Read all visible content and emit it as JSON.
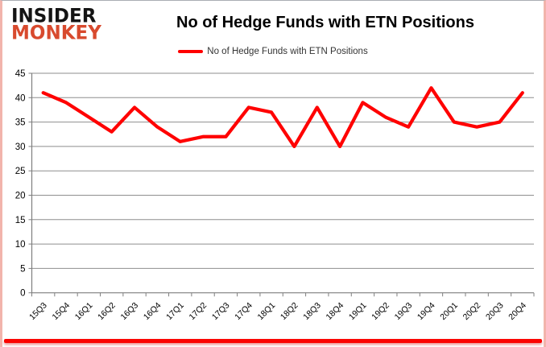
{
  "logo": {
    "line1": "INSIDER",
    "line2": "MONKEY"
  },
  "header": {
    "title": "No of Hedge Funds with ETN Positions"
  },
  "legend": {
    "label": "No of Hedge Funds with ETN Positions",
    "swatch_color": "#ff0000"
  },
  "chart_data": {
    "type": "line",
    "title": "No of Hedge Funds with ETN Positions",
    "categories": [
      "15Q3",
      "15Q4",
      "16Q1",
      "16Q2",
      "16Q3",
      "16Q4",
      "17Q1",
      "17Q2",
      "17Q3",
      "17Q4",
      "18Q1",
      "18Q2",
      "18Q3",
      "18Q4",
      "19Q1",
      "19Q2",
      "19Q3",
      "19Q4",
      "20Q1",
      "20Q2",
      "20Q3",
      "20Q4"
    ],
    "series": [
      {
        "name": "No of Hedge Funds with ETN Positions",
        "color": "#ff0000",
        "values": [
          41,
          39,
          36,
          33,
          38,
          34,
          31,
          32,
          32,
          38,
          37,
          30,
          38,
          30,
          39,
          36,
          34,
          42,
          35,
          34,
          35,
          41
        ]
      }
    ],
    "xlabel": "",
    "ylabel": "",
    "ylim": [
      0,
      45
    ],
    "ytick_step": 5,
    "grid": true,
    "legend_position": "top"
  },
  "colors": {
    "line": "#ff0000",
    "gridline": "#8e8e8e",
    "axis": "#7f7f7f",
    "tick_label": "#000000",
    "bottom_bar": "#fb0300"
  }
}
